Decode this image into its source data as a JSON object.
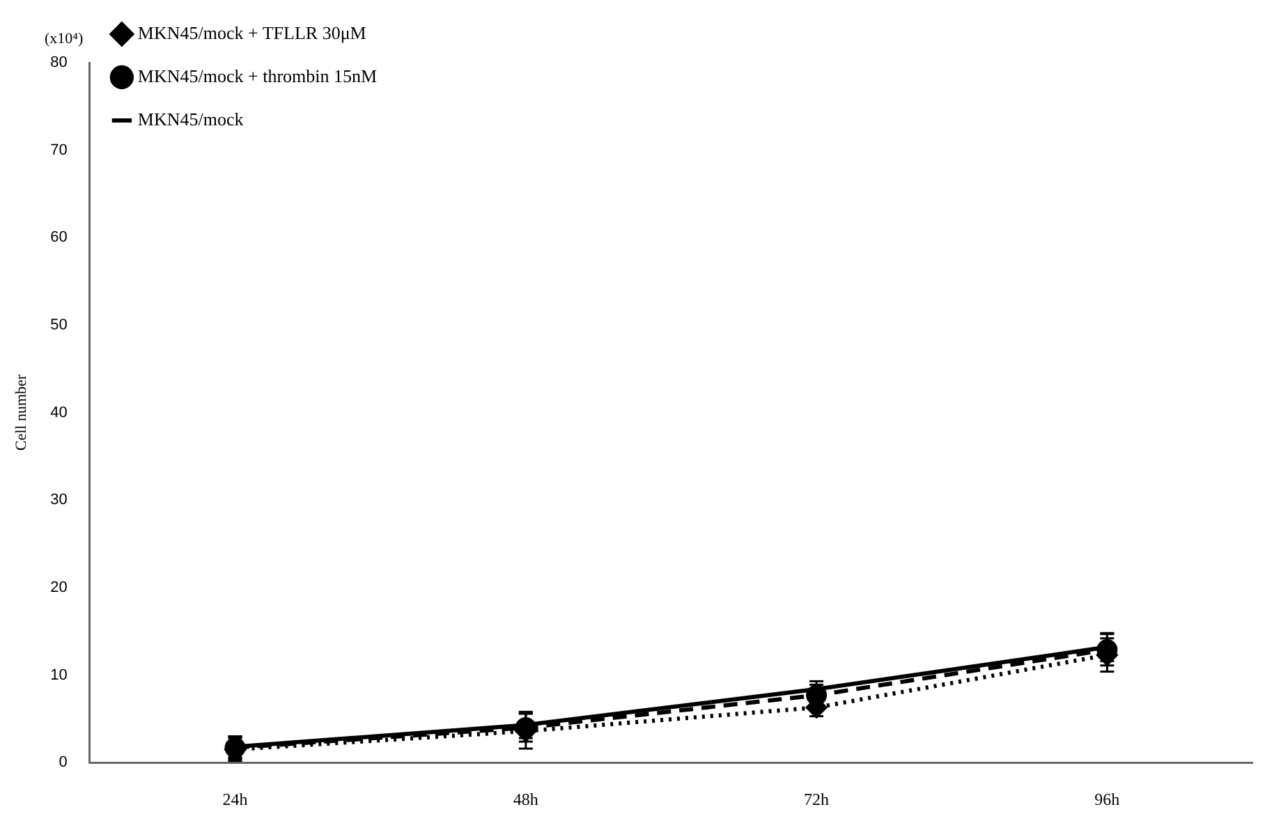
{
  "chart_data": {
    "type": "line",
    "ylabel": "Cell number",
    "annotations": [
      "(x10⁴)"
    ],
    "categories": [
      "24h",
      "48h",
      "72h",
      "96h"
    ],
    "series": [
      {
        "name": "MKN45/mock",
        "color": "#000000",
        "values": [
          1.8,
          4.3,
          8.4,
          13.2
        ],
        "errors": [
          1.2,
          1.5,
          0.9,
          1.6
        ],
        "marker": "none",
        "line_style": "solid"
      },
      {
        "name": "MKN45/mock + thrombin 15nM",
        "color": "#000000",
        "values": [
          1.7,
          4.0,
          7.7,
          12.9
        ],
        "errors": [
          1.3,
          1.6,
          1.2,
          1.8
        ],
        "marker": "circle",
        "line_style": "dashed"
      },
      {
        "name": "MKN45/mock + TFLLR 30μM",
        "color": "#000000",
        "values": [
          1.5,
          3.6,
          6.3,
          12.3
        ],
        "errors": [
          1.3,
          2.0,
          1.0,
          1.9
        ],
        "marker": "diamond",
        "line_style": "dotted"
      }
    ],
    "ylim": [
      0,
      80
    ],
    "yticks": [
      0,
      10,
      20,
      30,
      40,
      50,
      60,
      70,
      80
    ],
    "grid": false,
    "legend": "top left"
  }
}
